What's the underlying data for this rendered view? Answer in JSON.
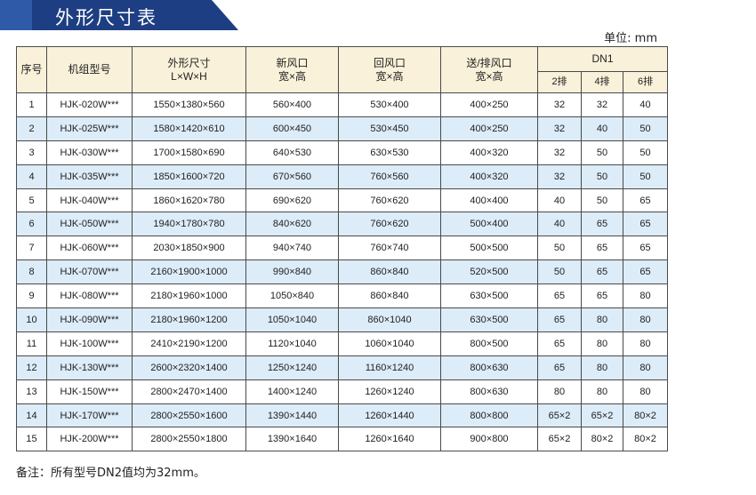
{
  "title": "外形尺寸表",
  "unit": "单位: mm",
  "headers": {
    "seq": "序号",
    "model": "机组型号",
    "dims": "外形尺寸",
    "dims_sub": "L×W×H",
    "fresh": "新风口",
    "fresh_sub": "宽×高",
    "return": "回风口",
    "return_sub": "宽×高",
    "supply": "送/排风口",
    "supply_sub": "宽×高",
    "dn": "DN1",
    "dn_2": "2排",
    "dn_4": "4排",
    "dn_6": "6排"
  },
  "rows": [
    [
      "1",
      "HJK-020W***",
      "1550×1380×560",
      "560×400",
      "530×400",
      "400×250",
      "32",
      "32",
      "40"
    ],
    [
      "2",
      "HJK-025W***",
      "1580×1420×610",
      "600×450",
      "530×450",
      "400×250",
      "32",
      "40",
      "50"
    ],
    [
      "3",
      "HJK-030W***",
      "1700×1580×690",
      "640×530",
      "630×530",
      "400×320",
      "32",
      "50",
      "50"
    ],
    [
      "4",
      "HJK-035W***",
      "1850×1600×720",
      "670×560",
      "760×560",
      "400×320",
      "32",
      "50",
      "50"
    ],
    [
      "5",
      "HJK-040W***",
      "1860×1620×780",
      "690×620",
      "760×620",
      "400×400",
      "40",
      "50",
      "65"
    ],
    [
      "6",
      "HJK-050W***",
      "1940×1780×780",
      "840×620",
      "760×620",
      "500×400",
      "40",
      "65",
      "65"
    ],
    [
      "7",
      "HJK-060W***",
      "2030×1850×900",
      "940×740",
      "760×740",
      "500×500",
      "50",
      "65",
      "65"
    ],
    [
      "8",
      "HJK-070W***",
      "2160×1900×1000",
      "990×840",
      "860×840",
      "520×500",
      "50",
      "65",
      "65"
    ],
    [
      "9",
      "HJK-080W***",
      "2180×1960×1000",
      "1050×840",
      "860×840",
      "630×500",
      "65",
      "65",
      "80"
    ],
    [
      "10",
      "HJK-090W***",
      "2180×1960×1200",
      "1050×1040",
      "860×1040",
      "630×500",
      "65",
      "80",
      "80"
    ],
    [
      "11",
      "HJK-100W***",
      "2410×2190×1200",
      "1120×1040",
      "1060×1040",
      "800×500",
      "65",
      "80",
      "80"
    ],
    [
      "12",
      "HJK-130W***",
      "2600×2320×1400",
      "1250×1240",
      "1160×1240",
      "800×630",
      "65",
      "80",
      "80"
    ],
    [
      "13",
      "HJK-150W***",
      "2800×2470×1400",
      "1400×1240",
      "1260×1240",
      "800×630",
      "80",
      "80",
      "80"
    ],
    [
      "14",
      "HJK-170W***",
      "2800×2550×1600",
      "1390×1440",
      "1260×1440",
      "800×800",
      "65×2",
      "65×2",
      "80×2"
    ],
    [
      "15",
      "HJK-200W***",
      "2800×2550×1800",
      "1390×1640",
      "1260×1640",
      "900×800",
      "65×2",
      "80×2",
      "80×2"
    ]
  ],
  "note": "备注：所有型号DN2值均为32mm。"
}
